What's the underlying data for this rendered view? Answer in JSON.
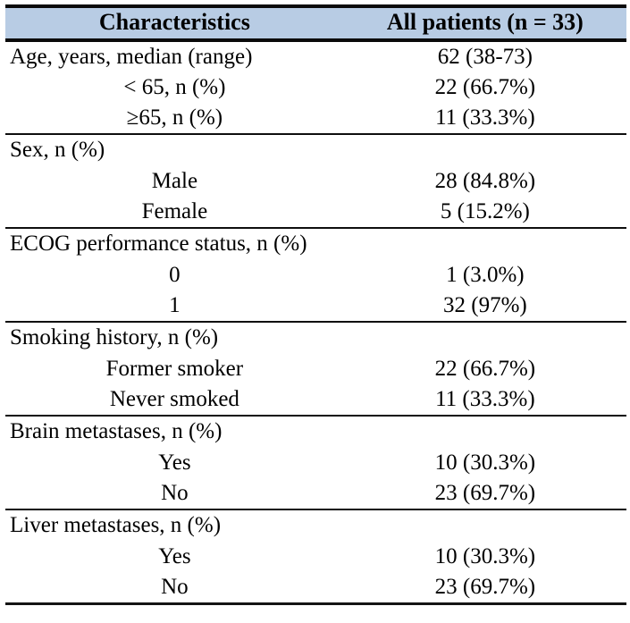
{
  "table": {
    "header": {
      "characteristics": "Characteristics",
      "all_patients": "All patients (n = 33)"
    },
    "rows": [
      {
        "label": "Age, years, median (range)",
        "value": "62 (38-73)"
      },
      {
        "label": "< 65, n (%)",
        "value": "22 (66.7%)"
      },
      {
        "label": "≥65, n (%)",
        "value": "11 (33.3%)"
      },
      {
        "label": "Sex, n (%)",
        "value": ""
      },
      {
        "label": "Male",
        "value": "28 (84.8%)"
      },
      {
        "label": "Female",
        "value": "5 (15.2%)"
      },
      {
        "label": "ECOG performance status, n (%)",
        "value": ""
      },
      {
        "label": "0",
        "value": "1 (3.0%)"
      },
      {
        "label": "1",
        "value": "32 (97%)"
      },
      {
        "label": "Smoking history, n (%)",
        "value": ""
      },
      {
        "label": "Former smoker",
        "value": "22 (66.7%)"
      },
      {
        "label": "Never smoked",
        "value": "11 (33.3%)"
      },
      {
        "label": "Brain metastases, n (%)",
        "value": ""
      },
      {
        "label": "Yes",
        "value": "10 (30.3%)"
      },
      {
        "label": "No",
        "value": "23 (69.7%)"
      },
      {
        "label": "Liver metastases, n (%)",
        "value": ""
      },
      {
        "label": "Yes",
        "value": "10 (30.3%)"
      },
      {
        "label": "No",
        "value": "23 (69.7%)"
      }
    ]
  },
  "colors": {
    "header_background": "#b8cce4",
    "border": "#000000",
    "text": "#000000",
    "page_background": "#ffffff"
  }
}
